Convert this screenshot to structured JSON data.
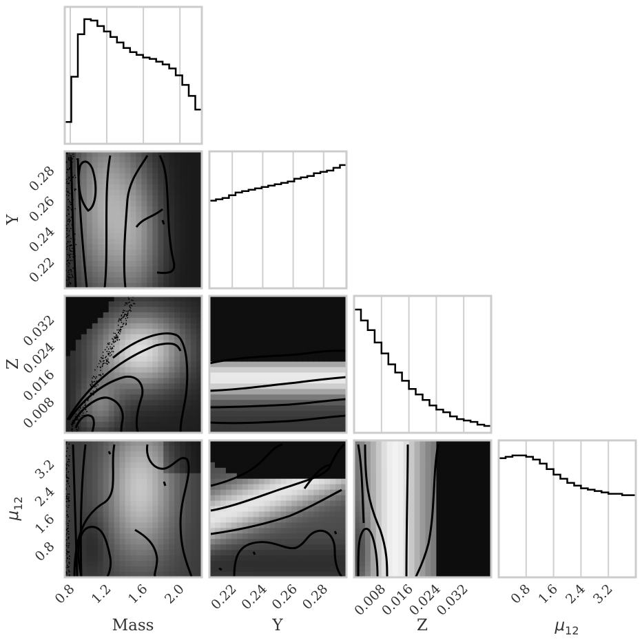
{
  "chart_data": {
    "type": "corner",
    "title": "",
    "parameters": [
      {
        "key": "mass",
        "label": "Mass",
        "range": [
          0.74,
          2.24
        ],
        "ticks": [
          {
            "v": 0.8,
            "t": "0.8"
          },
          {
            "v": 1.2,
            "t": "1.2"
          },
          {
            "v": 1.6,
            "t": "1.6"
          },
          {
            "v": 2.0,
            "t": "2.0"
          }
        ]
      },
      {
        "key": "Y",
        "label": "Y",
        "range": [
          0.205,
          0.295
        ],
        "ticks": [
          {
            "v": 0.22,
            "t": "0.22"
          },
          {
            "v": 0.24,
            "t": "0.24"
          },
          {
            "v": 0.26,
            "t": "0.26"
          },
          {
            "v": 0.28,
            "t": "0.28"
          }
        ]
      },
      {
        "key": "Z",
        "label": "Z",
        "range": [
          0.0,
          0.04
        ],
        "ticks": [
          {
            "v": 0.008,
            "t": "0.008"
          },
          {
            "v": 0.016,
            "t": "0.016"
          },
          {
            "v": 0.024,
            "t": "0.024"
          },
          {
            "v": 0.032,
            "t": "0.032"
          }
        ]
      },
      {
        "key": "mu12",
        "label_main": "μ",
        "label_sub": "12",
        "range": [
          0.0,
          4.0
        ],
        "ticks": [
          {
            "v": 0.8,
            "t": "0.8"
          },
          {
            "v": 1.6,
            "t": "1.6"
          },
          {
            "v": 2.4,
            "t": "2.4"
          },
          {
            "v": 3.2,
            "t": "3.2"
          }
        ]
      }
    ],
    "histograms": [
      {
        "parameter": "mass",
        "counts": [
          0.16,
          0.49,
          0.8,
          0.91,
          0.9,
          0.86,
          0.82,
          0.78,
          0.74,
          0.7,
          0.67,
          0.65,
          0.63,
          0.62,
          0.6,
          0.58,
          0.55,
          0.5,
          0.43,
          0.35,
          0.25
        ]
      },
      {
        "parameter": "Y",
        "counts": [
          0.64,
          0.65,
          0.66,
          0.68,
          0.7,
          0.71,
          0.72,
          0.73,
          0.74,
          0.75,
          0.76,
          0.77,
          0.78,
          0.8,
          0.81,
          0.82,
          0.84,
          0.85,
          0.86,
          0.88,
          0.9
        ]
      },
      {
        "parameter": "Z",
        "counts": [
          0.9,
          0.82,
          0.75,
          0.66,
          0.58,
          0.5,
          0.44,
          0.38,
          0.32,
          0.28,
          0.24,
          0.2,
          0.17,
          0.15,
          0.12,
          0.1,
          0.09,
          0.08,
          0.06,
          0.05
        ]
      },
      {
        "parameter": "mu12",
        "counts": [
          0.87,
          0.88,
          0.89,
          0.89,
          0.88,
          0.86,
          0.83,
          0.79,
          0.75,
          0.72,
          0.69,
          0.67,
          0.65,
          0.64,
          0.63,
          0.62,
          0.61,
          0.61,
          0.6,
          0.6
        ]
      }
    ],
    "densities": [
      {
        "x": "mass",
        "y": "Y"
      },
      {
        "x": "mass",
        "y": "Z"
      },
      {
        "x": "Y",
        "y": "Z"
      },
      {
        "x": "mass",
        "y": "mu12"
      },
      {
        "x": "Y",
        "y": "mu12"
      },
      {
        "x": "Z",
        "y": "mu12"
      }
    ],
    "grid": true,
    "colormap": "greyscale"
  }
}
